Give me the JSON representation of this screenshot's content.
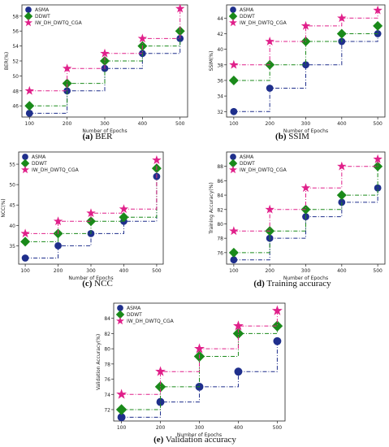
{
  "style": {
    "asma_color": "#1f2f8c",
    "ddwt_color": "#1a8a1a",
    "iw_color": "#e0208a"
  },
  "chart_data": [
    {
      "type": "line",
      "step": true,
      "caption_letter": "(a)",
      "caption_text": " BER",
      "xlabel": "Number of Epochs",
      "ylabel": "BER(%)",
      "x": [
        100,
        200,
        300,
        400,
        500
      ],
      "xlim": [
        80,
        520
      ],
      "ylim": [
        44.5,
        59.5
      ],
      "yticks": [
        46,
        48,
        50,
        52,
        54,
        56,
        58
      ],
      "xticks": [
        100,
        200,
        300,
        400,
        500
      ],
      "legend": "top-left",
      "series": [
        {
          "name": "ASMA",
          "marker": "circle",
          "values": [
            45,
            48,
            51,
            53,
            55
          ]
        },
        {
          "name": "DDWT",
          "marker": "diamond",
          "values": [
            46,
            49,
            52,
            54,
            56
          ]
        },
        {
          "name": "IW_DH_DWTQ_CGA",
          "marker": "star",
          "values": [
            48,
            51,
            53,
            55,
            59
          ]
        }
      ]
    },
    {
      "type": "line",
      "step": true,
      "caption_letter": "(b)",
      "caption_text": " SSIM",
      "xlabel": "Number of Epochs",
      "ylabel": "SSIM(%)",
      "x": [
        100,
        200,
        300,
        400,
        500
      ],
      "xlim": [
        80,
        520
      ],
      "ylim": [
        31.3,
        45.7
      ],
      "yticks": [
        32,
        34,
        36,
        38,
        40,
        42,
        44
      ],
      "xticks": [
        100,
        200,
        300,
        400,
        500
      ],
      "legend": "top-left",
      "series": [
        {
          "name": "ASMA",
          "marker": "circle",
          "values": [
            32,
            35,
            38,
            41,
            42
          ]
        },
        {
          "name": "DDWT",
          "marker": "diamond",
          "values": [
            36,
            38,
            41,
            42,
            43
          ]
        },
        {
          "name": "IW_DH_DWTQ_CGA",
          "marker": "star",
          "values": [
            38,
            41,
            43,
            44,
            45
          ]
        }
      ]
    },
    {
      "type": "line",
      "step": true,
      "caption_letter": "(c)",
      "caption_text": " NCC",
      "xlabel": "Number of Epochs",
      "ylabel": "NCC(%)",
      "x": [
        100,
        200,
        300,
        400,
        500
      ],
      "xlim": [
        80,
        520
      ],
      "ylim": [
        30.5,
        58
      ],
      "yticks": [
        35,
        40,
        45,
        50,
        55
      ],
      "xticks": [
        100,
        200,
        300,
        400,
        500
      ],
      "legend": "top-left",
      "series": [
        {
          "name": "ASMA",
          "marker": "circle",
          "values": [
            32,
            35,
            38,
            41,
            52
          ]
        },
        {
          "name": "DDWT",
          "marker": "diamond",
          "values": [
            36,
            38,
            41,
            42,
            54
          ]
        },
        {
          "name": "IW_DH_DWTQ_CGA",
          "marker": "star",
          "values": [
            38,
            41,
            43,
            44,
            56
          ]
        }
      ]
    },
    {
      "type": "line",
      "step": true,
      "caption_letter": "(d)",
      "caption_text": " Training accuracy",
      "xlabel": "Number of Epochs",
      "ylabel": "Training Accuracy(%)",
      "x": [
        100,
        200,
        300,
        400,
        500
      ],
      "xlim": [
        80,
        520
      ],
      "ylim": [
        74.4,
        90
      ],
      "yticks": [
        76,
        78,
        80,
        82,
        84,
        86,
        88
      ],
      "xticks": [
        100,
        200,
        300,
        400,
        500
      ],
      "legend": "top-left",
      "series": [
        {
          "name": "ASMA",
          "marker": "circle",
          "values": [
            75,
            78,
            81,
            83,
            85
          ]
        },
        {
          "name": "DDWT",
          "marker": "diamond",
          "values": [
            76,
            79,
            82,
            84,
            88
          ]
        },
        {
          "name": "IW_DH_DWTQ_CGA",
          "marker": "star",
          "values": [
            79,
            82,
            85,
            88,
            89
          ]
        }
      ]
    },
    {
      "type": "line",
      "step": true,
      "caption_letter": "(e)",
      "caption_text": " Validation accuracy",
      "xlabel": "Number of Epochs",
      "ylabel": "Validation Accuracy(%)",
      "x": [
        100,
        200,
        300,
        400,
        500
      ],
      "xlim": [
        80,
        520
      ],
      "ylim": [
        70.5,
        86
      ],
      "yticks": [
        72,
        74,
        76,
        78,
        80,
        82,
        84
      ],
      "xticks": [
        100,
        200,
        300,
        400,
        500
      ],
      "legend": "top-left",
      "series": [
        {
          "name": "ASMA",
          "marker": "circle",
          "values": [
            71,
            73,
            75,
            77,
            81
          ]
        },
        {
          "name": "DDWT",
          "marker": "diamond",
          "values": [
            72,
            75,
            79,
            82,
            83
          ]
        },
        {
          "name": "IW_DH_DWTQ_CGA",
          "marker": "star",
          "values": [
            74,
            77,
            80,
            83,
            85
          ]
        }
      ]
    }
  ]
}
